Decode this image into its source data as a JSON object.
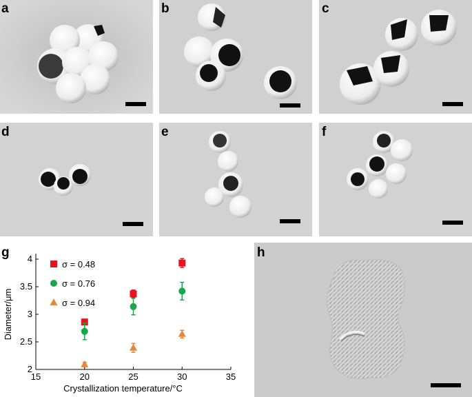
{
  "panels": {
    "a": {
      "label": "a"
    },
    "b": {
      "label": "b"
    },
    "c": {
      "label": "c"
    },
    "d": {
      "label": "d"
    },
    "e": {
      "label": "e"
    },
    "f": {
      "label": "f"
    },
    "g": {
      "label": "g"
    },
    "h": {
      "label": "h"
    }
  },
  "colors": {
    "sem_background": "#d2d2d2",
    "sphere": "#f4f4f4",
    "sphere_shadow": "#9a9a9a",
    "opening": "#111111"
  },
  "chart_data": {
    "type": "scatter",
    "xlabel": "Crystallization temperature/°C",
    "ylabel": "Diameter/μm",
    "xlim": [
      15,
      35
    ],
    "ylim": [
      2,
      4
    ],
    "xticks": [
      "15",
      "20",
      "25",
      "30",
      "35"
    ],
    "yticks": [
      "2",
      "2.5",
      "3",
      "3.5",
      "4"
    ],
    "legend_position": "top-left",
    "grid": false,
    "series": [
      {
        "name": "σ = 0.48",
        "marker": "square",
        "color": "#e8141c",
        "x": [
          20,
          25,
          30
        ],
        "y": [
          2.86,
          3.37,
          3.93
        ],
        "err": [
          0.05,
          0.07,
          0.08
        ]
      },
      {
        "name": "σ = 0.76",
        "marker": "circle",
        "color": "#1aa64b",
        "x": [
          20,
          25,
          30
        ],
        "y": [
          2.69,
          3.14,
          3.42
        ],
        "err": [
          0.15,
          0.15,
          0.16
        ]
      },
      {
        "name": "σ = 0.94",
        "marker": "triangle",
        "color": "#e8873a",
        "x": [
          20,
          25,
          30
        ],
        "y": [
          2.09,
          2.39,
          2.64
        ],
        "err": [
          0.04,
          0.08,
          0.07
        ]
      }
    ]
  }
}
